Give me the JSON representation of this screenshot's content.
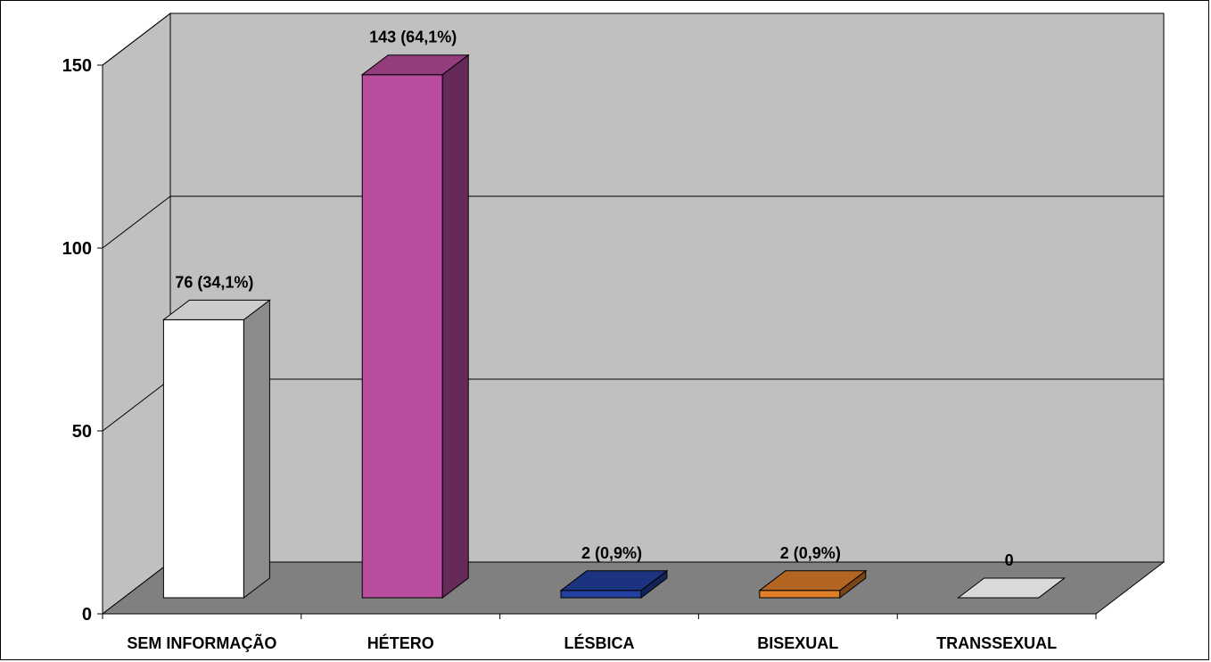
{
  "chart_data": {
    "type": "bar",
    "style": "3d-column",
    "categories": [
      "SEM INFORMAÇÃO",
      "HÉTERO",
      "LÉSBICA",
      "BISEXUAL",
      "TRANSSEXUAL"
    ],
    "values": [
      76,
      143,
      2,
      2,
      0
    ],
    "data_labels": [
      "76 (34,1%)",
      "143 (64,1%)",
      "2 (0,9%)",
      "2 (0,9%)",
      "0"
    ],
    "colors": [
      "#ffffff",
      "#b84c9e",
      "#2340a0",
      "#e07f2a",
      "#d9d9d9"
    ],
    "y_ticks": [
      "0",
      "50",
      "100",
      "150"
    ],
    "y_tick_values": [
      0,
      50,
      100,
      150
    ],
    "ylim": [
      0,
      150
    ],
    "grid": true,
    "legend": "none",
    "title": "",
    "xlabel": "",
    "ylabel": "",
    "wall_color": "#c0c0c0",
    "floor_color": "#808080"
  }
}
